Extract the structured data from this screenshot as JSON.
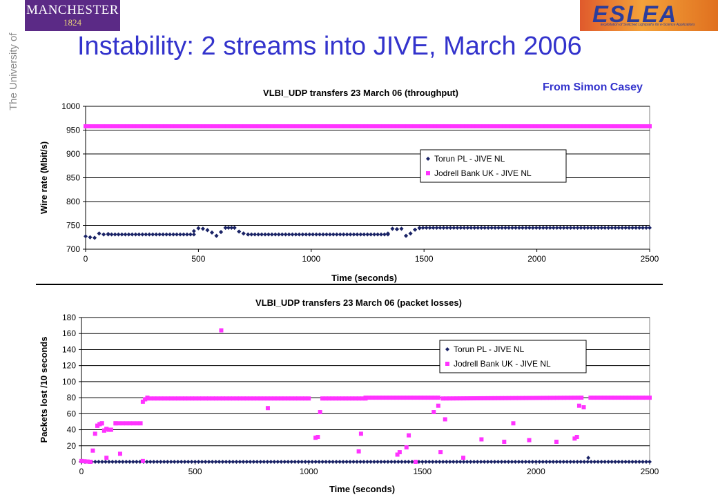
{
  "header": {
    "title": "Instability: 2 streams into JIVE, March 2006",
    "credit": "From Simon Casey",
    "logo_left_line1": "MANCHESTER",
    "logo_left_line2": "1824",
    "logo_left_side": "The University of Manchester",
    "logo_right": "ESLEA",
    "logo_right_tagline": "Exploitation of Switched Lightpaths for e-Science Applications"
  },
  "colors": {
    "title": "#3333cc",
    "torun": "#1a2366",
    "jodrell": "#ff33ff",
    "logo_left_bg": "#5b2a86"
  },
  "chart_data": [
    {
      "type": "scatter",
      "title": "VLBI_UDP transfers 23 March 06 (throughput)",
      "xlabel": "Time (seconds)",
      "ylabel": "Wire rate (Mbit/s)",
      "xlim": [
        0,
        2500
      ],
      "ylim": [
        700,
        1000
      ],
      "xticks": [
        0,
        500,
        1000,
        1500,
        2000,
        2500
      ],
      "yticks": [
        700,
        750,
        800,
        850,
        900,
        950,
        1000
      ],
      "grid": true,
      "legend_position": "top-right",
      "series": [
        {
          "name": "Torun PL - JIVE NL",
          "marker": "diamond",
          "segments": [
            [
              [
                0,
                727
              ],
              [
                20,
                725
              ],
              [
                40,
                724
              ],
              [
                60,
                733
              ],
              [
                80,
                731
              ],
              [
                100,
                732
              ]
            ],
            [
              [
                100,
                731
              ],
              [
                480,
                731
              ]
            ],
            [
              [
                480,
                738
              ],
              [
                500,
                744
              ],
              [
                520,
                743
              ],
              [
                540,
                740
              ],
              [
                560,
                735
              ],
              [
                580,
                728
              ],
              [
                600,
                736
              ],
              [
                620,
                745
              ],
              [
                660,
                745
              ],
              [
                680,
                737
              ],
              [
                700,
                733
              ],
              [
                720,
                731
              ]
            ],
            [
              [
                720,
                731
              ],
              [
                1340,
                731
              ]
            ],
            [
              [
                1340,
                733
              ],
              [
                1360,
                743
              ],
              [
                1380,
                742
              ],
              [
                1400,
                743
              ],
              [
                1420,
                728
              ],
              [
                1440,
                733
              ],
              [
                1460,
                741
              ],
              [
                1480,
                744
              ]
            ],
            [
              [
                1480,
                745
              ],
              [
                2500,
                745
              ]
            ]
          ]
        },
        {
          "name": "Jodrell Bank UK - JIVE NL",
          "marker": "square",
          "segments": [
            [
              [
                0,
                958
              ],
              [
                2500,
                958
              ]
            ]
          ]
        }
      ]
    },
    {
      "type": "scatter",
      "title": "VLBI_UDP transfers 23 March 06 (packet losses)",
      "xlabel": "Time (seconds)",
      "ylabel": "Packets lost /10 seconds",
      "xlim": [
        0,
        2500
      ],
      "ylim": [
        0,
        180
      ],
      "xticks": [
        0,
        500,
        1000,
        1500,
        2000,
        2500
      ],
      "yticks": [
        0,
        20,
        40,
        60,
        80,
        100,
        120,
        140,
        160,
        180
      ],
      "grid": true,
      "legend_position": "top-right",
      "series": [
        {
          "name": "Torun PL - JIVE NL",
          "marker": "diamond",
          "segments": [
            [
              [
                0,
                0
              ],
              [
                2500,
                0
              ]
            ]
          ],
          "points": [
            [
              2230,
              5
            ]
          ]
        },
        {
          "name": "Jodrell Bank UK - JIVE NL",
          "marker": "square",
          "segments": [
            [
              [
                0,
                1
              ],
              [
                40,
                0
              ]
            ],
            [
              [
                60,
                35
              ],
              [
                70,
                45
              ],
              [
                80,
                47
              ],
              [
                90,
                48
              ],
              [
                100,
                39
              ],
              [
                110,
                41
              ],
              [
                120,
                40
              ],
              [
                130,
                40
              ],
              [
                150,
                48
              ]
            ],
            [
              [
                150,
                48
              ],
              [
                260,
                48
              ]
            ],
            [
              [
                270,
                75
              ],
              [
                280,
                78
              ],
              [
                290,
                80
              ]
            ],
            [
              [
                290,
                79
              ],
              [
                1000,
                79
              ]
            ],
            [
              [
                1060,
                79
              ],
              [
                1250,
                79
              ]
            ],
            [
              [
                1250,
                80
              ],
              [
                1570,
                80
              ]
            ],
            [
              [
                1590,
                79
              ],
              [
                2200,
                80
              ]
            ],
            [
              [
                2240,
                80
              ],
              [
                2500,
                80
              ]
            ]
          ],
          "points": [
            [
              50,
              14
            ],
            [
              110,
              5
            ],
            [
              170,
              10
            ],
            [
              270,
              1
            ],
            [
              615,
              164
            ],
            [
              820,
              67
            ],
            [
              1030,
              30
            ],
            [
              1040,
              31
            ],
            [
              1050,
              62
            ],
            [
              1220,
              13
            ],
            [
              1230,
              35
            ],
            [
              1390,
              9
            ],
            [
              1400,
              12
            ],
            [
              1430,
              18
            ],
            [
              1440,
              33
            ],
            [
              1470,
              0
            ],
            [
              1550,
              62
            ],
            [
              1570,
              70
            ],
            [
              1580,
              12
            ],
            [
              1600,
              53
            ],
            [
              1680,
              5
            ],
            [
              1760,
              28
            ],
            [
              1860,
              25
            ],
            [
              1900,
              48
            ],
            [
              1970,
              27
            ],
            [
              2090,
              25
            ],
            [
              2170,
              29
            ],
            [
              2180,
              31
            ],
            [
              2190,
              70
            ],
            [
              2210,
              68
            ]
          ]
        }
      ]
    }
  ]
}
